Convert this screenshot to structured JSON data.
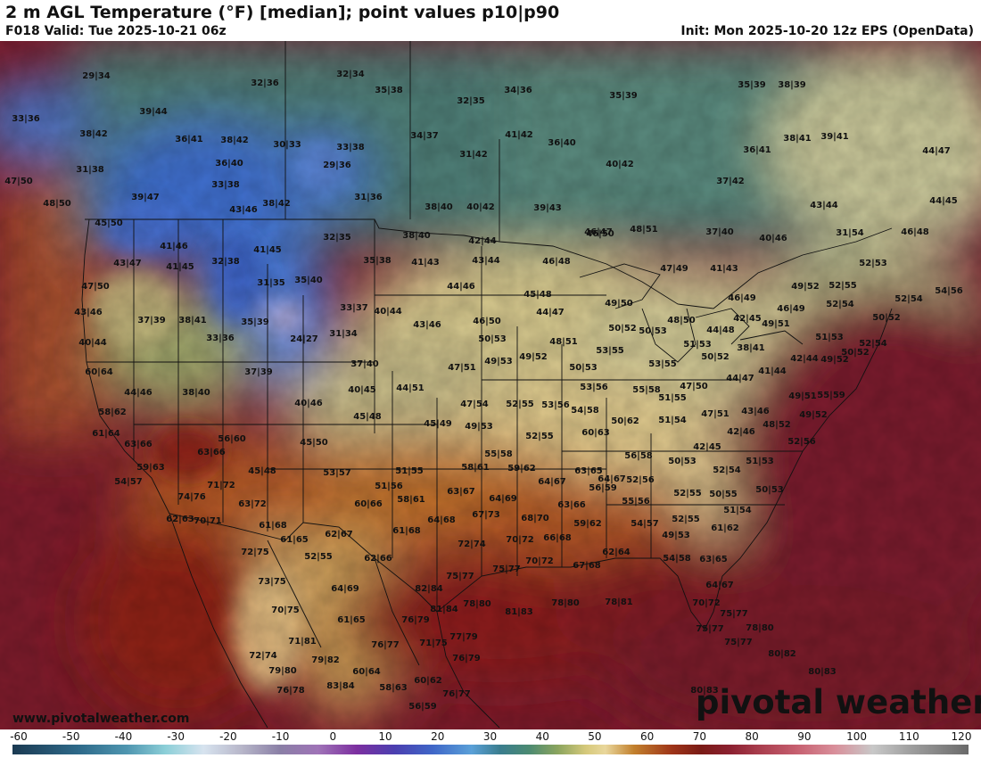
{
  "header": {
    "title": "2 m AGL Temperature (°F) [median]; point values p10|p90",
    "valid": "F018 Valid: Tue 2025-10-21 06z",
    "init": "Init: Mon 2025-10-20 12z EPS (OpenData)"
  },
  "footer": {
    "website": "www.pivotalweather.com",
    "brand": "pivotal weather"
  },
  "colorbar": {
    "ticks": [
      "-60",
      "-50",
      "-40",
      "-30",
      "-20",
      "-10",
      "0",
      "10",
      "20",
      "30",
      "40",
      "50",
      "60",
      "70",
      "80",
      "90",
      "100",
      "110",
      "120"
    ]
  },
  "colors": {
    "cold_blue": "#4a77d4",
    "cool_teal": "#4e7e78",
    "mild_yellow": "#d8c98a",
    "warm_orange": "#c8762e",
    "hot_red": "#8a1f1f",
    "ocean_maroon": "#7d1c2e",
    "border_black": "#111111"
  },
  "points": [
    {
      "text": "29|34"
    },
    {
      "text": "32|36"
    },
    {
      "text": "32|34"
    },
    {
      "text": "35|38"
    },
    {
      "text": "32|35"
    },
    {
      "text": "34|36"
    },
    {
      "text": "35|39"
    },
    {
      "text": "35|39"
    },
    {
      "text": "38|39"
    },
    {
      "text": "33|36"
    },
    {
      "text": "39|44"
    },
    {
      "text": "38|42"
    },
    {
      "text": "36|41"
    },
    {
      "text": "38|42"
    },
    {
      "text": "30|33"
    },
    {
      "text": "33|38"
    },
    {
      "text": "34|37"
    },
    {
      "text": "41|42"
    },
    {
      "text": "36|40"
    },
    {
      "text": "36|41"
    },
    {
      "text": "38|41"
    },
    {
      "text": "39|41"
    },
    {
      "text": "44|47"
    },
    {
      "text": "31|38"
    },
    {
      "text": "36|40"
    },
    {
      "text": "29|36"
    },
    {
      "text": "31|42"
    },
    {
      "text": "40|42"
    },
    {
      "text": "47|50"
    },
    {
      "text": "33|38"
    },
    {
      "text": "37|42"
    },
    {
      "text": "48|50"
    },
    {
      "text": "39|47"
    },
    {
      "text": "31|36"
    },
    {
      "text": "43|46"
    },
    {
      "text": "38|42"
    },
    {
      "text": "38|40"
    },
    {
      "text": "40|42"
    },
    {
      "text": "39|43"
    },
    {
      "text": "43|44"
    },
    {
      "text": "44|45"
    },
    {
      "text": "45|50"
    },
    {
      "text": "46|50"
    },
    {
      "text": "41|46"
    },
    {
      "text": "32|35"
    },
    {
      "text": "38|40"
    },
    {
      "text": "42|44"
    },
    {
      "text": "46|47"
    },
    {
      "text": "48|51"
    },
    {
      "text": "37|40"
    },
    {
      "text": "40|46"
    },
    {
      "text": "31|54"
    },
    {
      "text": "46|48"
    },
    {
      "text": "43|47"
    },
    {
      "text": "41|45"
    },
    {
      "text": "32|38"
    },
    {
      "text": "41|45"
    },
    {
      "text": "35|38"
    },
    {
      "text": "41|43"
    },
    {
      "text": "43|44"
    },
    {
      "text": "46|48"
    },
    {
      "text": "47|49"
    },
    {
      "text": "41|43"
    },
    {
      "text": "52|53"
    },
    {
      "text": "47|50"
    },
    {
      "text": "31|35"
    },
    {
      "text": "35|40"
    },
    {
      "text": "44|46"
    },
    {
      "text": "45|48"
    },
    {
      "text": "49|50"
    },
    {
      "text": "46|49"
    },
    {
      "text": "49|52"
    },
    {
      "text": "52|55"
    },
    {
      "text": "52|54"
    },
    {
      "text": "54|56"
    },
    {
      "text": "43|46"
    },
    {
      "text": "37|39"
    },
    {
      "text": "38|41"
    },
    {
      "text": "35|39"
    },
    {
      "text": "33|37"
    },
    {
      "text": "40|44"
    },
    {
      "text": "46|50"
    },
    {
      "text": "44|47"
    },
    {
      "text": "48|50"
    },
    {
      "text": "42|45"
    },
    {
      "text": "46|49"
    },
    {
      "text": "52|54"
    },
    {
      "text": "50|52"
    },
    {
      "text": "40|44"
    },
    {
      "text": "33|36"
    },
    {
      "text": "24|27"
    },
    {
      "text": "31|34"
    },
    {
      "text": "43|46"
    },
    {
      "text": "50|53"
    },
    {
      "text": "50|52"
    },
    {
      "text": "50|53"
    },
    {
      "text": "49|51"
    },
    {
      "text": "51|53"
    },
    {
      "text": "44|48"
    },
    {
      "text": "48|51"
    },
    {
      "text": "49|52"
    },
    {
      "text": "49|53"
    },
    {
      "text": "51|53"
    },
    {
      "text": "53|55"
    },
    {
      "text": "50|52"
    },
    {
      "text": "38|41"
    },
    {
      "text": "42|44"
    },
    {
      "text": "52|54"
    },
    {
      "text": "50|52"
    },
    {
      "text": "60|64"
    },
    {
      "text": "37|39"
    },
    {
      "text": "37|40"
    },
    {
      "text": "47|51"
    },
    {
      "text": "50|53"
    },
    {
      "text": "53|55"
    },
    {
      "text": "47|50"
    },
    {
      "text": "41|44"
    },
    {
      "text": "44|47"
    },
    {
      "text": "49|52"
    },
    {
      "text": "44|46"
    },
    {
      "text": "38|40"
    },
    {
      "text": "40|45"
    },
    {
      "text": "44|51"
    },
    {
      "text": "53|56"
    },
    {
      "text": "55|58"
    },
    {
      "text": "49|51"
    },
    {
      "text": "55|59"
    },
    {
      "text": "58|62"
    },
    {
      "text": "40|46"
    },
    {
      "text": "47|54"
    },
    {
      "text": "52|55"
    },
    {
      "text": "53|56"
    },
    {
      "text": "54|58"
    },
    {
      "text": "51|55"
    },
    {
      "text": "43|46"
    },
    {
      "text": "49|52"
    },
    {
      "text": "61|64"
    },
    {
      "text": "45|48"
    },
    {
      "text": "45|49"
    },
    {
      "text": "49|53"
    },
    {
      "text": "50|62"
    },
    {
      "text": "51|54"
    },
    {
      "text": "47|51"
    },
    {
      "text": "48|52"
    },
    {
      "text": "63|66"
    },
    {
      "text": "56|60"
    },
    {
      "text": "45|50"
    },
    {
      "text": "52|55"
    },
    {
      "text": "60|63"
    },
    {
      "text": "42|46"
    },
    {
      "text": "52|56"
    },
    {
      "text": "59|63"
    },
    {
      "text": "63|66"
    },
    {
      "text": "55|58"
    },
    {
      "text": "56|58"
    },
    {
      "text": "42|45"
    },
    {
      "text": "54|57"
    },
    {
      "text": "45|48"
    },
    {
      "text": "53|57"
    },
    {
      "text": "51|55"
    },
    {
      "text": "58|61"
    },
    {
      "text": "59|62"
    },
    {
      "text": "63|65"
    },
    {
      "text": "50|53"
    },
    {
      "text": "51|53"
    },
    {
      "text": "64|67"
    },
    {
      "text": "71|72"
    },
    {
      "text": "51|56"
    },
    {
      "text": "64|67"
    },
    {
      "text": "56|59"
    },
    {
      "text": "52|56"
    },
    {
      "text": "52|54"
    },
    {
      "text": "50|55"
    },
    {
      "text": "50|53"
    },
    {
      "text": "74|76"
    },
    {
      "text": "63|72"
    },
    {
      "text": "60|66"
    },
    {
      "text": "58|61"
    },
    {
      "text": "63|67"
    },
    {
      "text": "64|69"
    },
    {
      "text": "63|66"
    },
    {
      "text": "55|56"
    },
    {
      "text": "52|55"
    },
    {
      "text": "51|54"
    },
    {
      "text": "62|63"
    },
    {
      "text": "70|71"
    },
    {
      "text": "61|68"
    },
    {
      "text": "62|67"
    },
    {
      "text": "61|68"
    },
    {
      "text": "64|68"
    },
    {
      "text": "67|73"
    },
    {
      "text": "68|70"
    },
    {
      "text": "59|62"
    },
    {
      "text": "54|57"
    },
    {
      "text": "52|55"
    },
    {
      "text": "61|62"
    },
    {
      "text": "72|75"
    },
    {
      "text": "61|65"
    },
    {
      "text": "52|55"
    },
    {
      "text": "62|66"
    },
    {
      "text": "72|74"
    },
    {
      "text": "70|72"
    },
    {
      "text": "66|68"
    },
    {
      "text": "62|64"
    },
    {
      "text": "49|53"
    },
    {
      "text": "54|58"
    },
    {
      "text": "63|65"
    },
    {
      "text": "73|75"
    },
    {
      "text": "64|69"
    },
    {
      "text": "82|84"
    },
    {
      "text": "75|77"
    },
    {
      "text": "75|77"
    },
    {
      "text": "70|72"
    },
    {
      "text": "67|68"
    },
    {
      "text": "64|67"
    },
    {
      "text": "70|75"
    },
    {
      "text": "61|65"
    },
    {
      "text": "76|79"
    },
    {
      "text": "81|84"
    },
    {
      "text": "78|80"
    },
    {
      "text": "81|83"
    },
    {
      "text": "78|80"
    },
    {
      "text": "78|81"
    },
    {
      "text": "70|72"
    },
    {
      "text": "75|77"
    },
    {
      "text": "75|77"
    },
    {
      "text": "78|80"
    },
    {
      "text": "71|81"
    },
    {
      "text": "76|77"
    },
    {
      "text": "71|75"
    },
    {
      "text": "77|79"
    },
    {
      "text": "75|77"
    },
    {
      "text": "72|74"
    },
    {
      "text": "79|82"
    },
    {
      "text": "76|79"
    },
    {
      "text": "80|82"
    },
    {
      "text": "79|80"
    },
    {
      "text": "60|64"
    },
    {
      "text": "60|62"
    },
    {
      "text": "80|83"
    },
    {
      "text": "76|78"
    },
    {
      "text": "83|84"
    },
    {
      "text": "58|63"
    },
    {
      "text": "76|77"
    },
    {
      "text": "80|83"
    },
    {
      "text": "56|59"
    }
  ]
}
